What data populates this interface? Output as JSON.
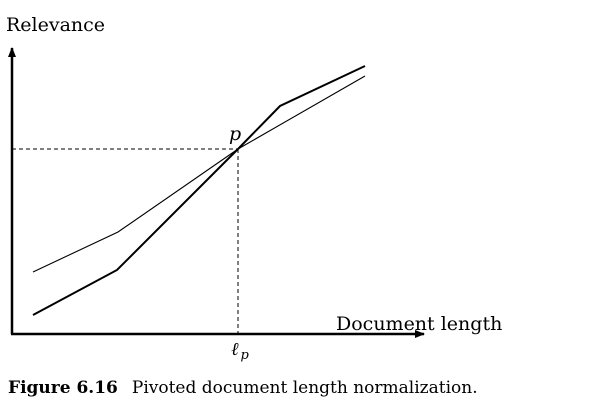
{
  "figure": {
    "y_axis_label": "Relevance",
    "x_axis_label": "Document length",
    "pivot_point_label": "p",
    "pivot_x_label_main": "ℓ",
    "pivot_x_label_sub": "p",
    "caption_label": "Figure 6.16",
    "caption_text": "Pivoted document length normalization."
  }
}
